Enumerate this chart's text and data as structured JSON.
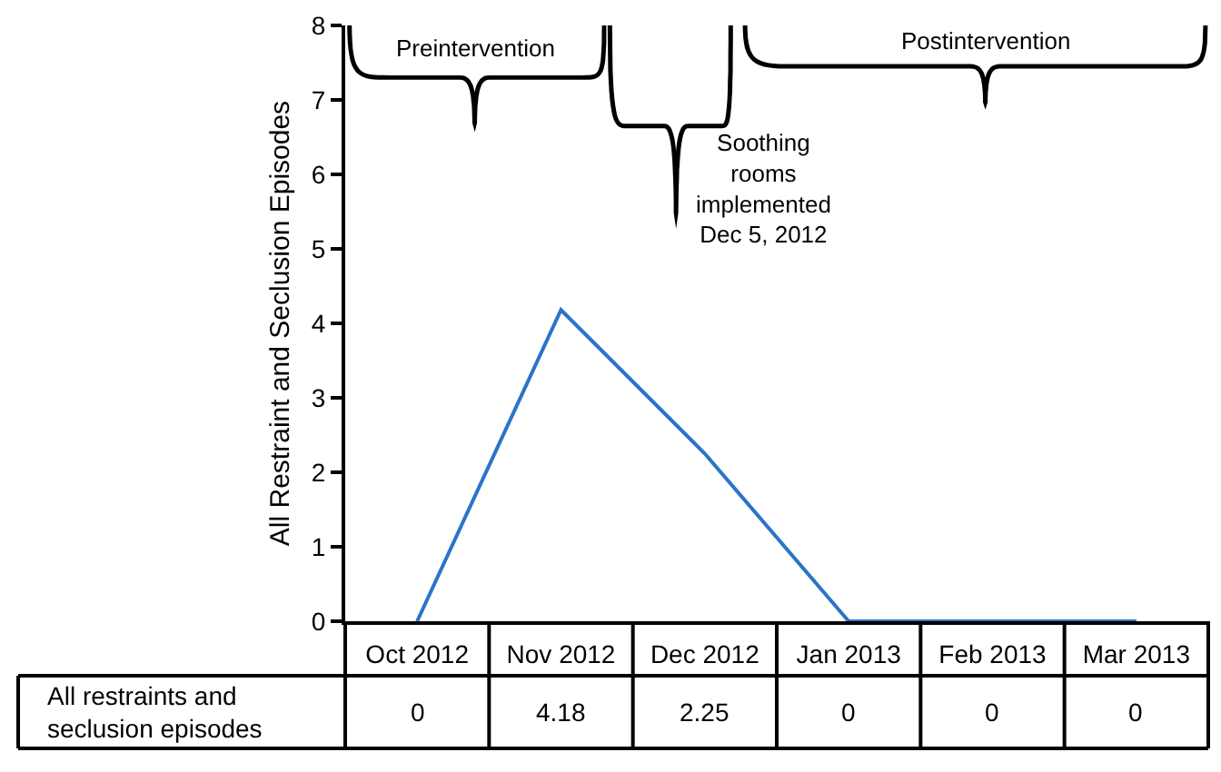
{
  "chart_data": {
    "type": "line",
    "ylabel": "All Restraint and Seclusion Episodes",
    "categories": [
      "Oct 2012",
      "Nov 2012",
      "Dec 2012",
      "Jan 2013",
      "Feb 2013",
      "Mar 2013"
    ],
    "series": [
      {
        "name": "All restraints and seclusion episodes",
        "color": "#2a74c8",
        "values": [
          0,
          4.18,
          2.25,
          0,
          0,
          0
        ]
      }
    ],
    "ylim": [
      0,
      8
    ],
    "yticks": [
      0,
      1,
      2,
      3,
      4,
      5,
      6,
      7,
      8
    ],
    "grid": false,
    "legend": false,
    "marker": "none",
    "line_style": "solid",
    "data_labels": true,
    "annotations": [
      "Preintervention",
      "Soothing rooms implemented Dec 5, 2012",
      "Postintervention"
    ]
  }
}
